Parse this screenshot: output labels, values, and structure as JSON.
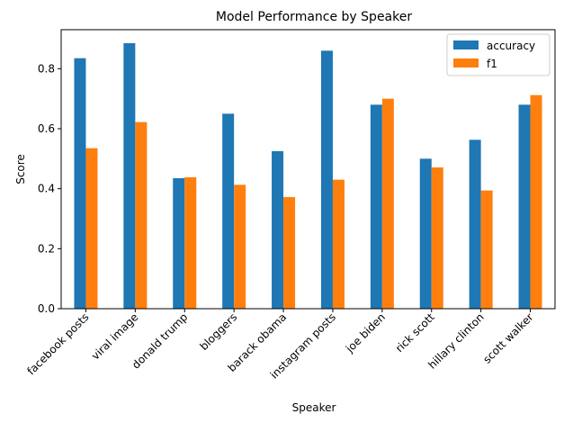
{
  "chart_data": {
    "type": "bar",
    "title": "Model Performance by Speaker",
    "xlabel": "Speaker",
    "ylabel": "Score",
    "ylim": [
      0,
      0.93
    ],
    "yticks": [
      0.0,
      0.2,
      0.4,
      0.6,
      0.8
    ],
    "ytick_labels": [
      "0.0",
      "0.2",
      "0.4",
      "0.6",
      "0.8"
    ],
    "categories": [
      "facebook posts",
      "viral image",
      "donald trump",
      "bloggers",
      "barack obama",
      "instagram posts",
      "joe biden",
      "rick scott",
      "hillary clinton",
      "scott walker"
    ],
    "series": [
      {
        "name": "accuracy",
        "color": "#1f77b4",
        "values": [
          0.835,
          0.885,
          0.435,
          0.65,
          0.525,
          0.86,
          0.68,
          0.5,
          0.563,
          0.68
        ]
      },
      {
        "name": "f1",
        "color": "#ff7f0e",
        "values": [
          0.535,
          0.622,
          0.438,
          0.413,
          0.372,
          0.43,
          0.7,
          0.471,
          0.394,
          0.712
        ]
      }
    ],
    "legend_position": "top-right",
    "grid": false
  }
}
